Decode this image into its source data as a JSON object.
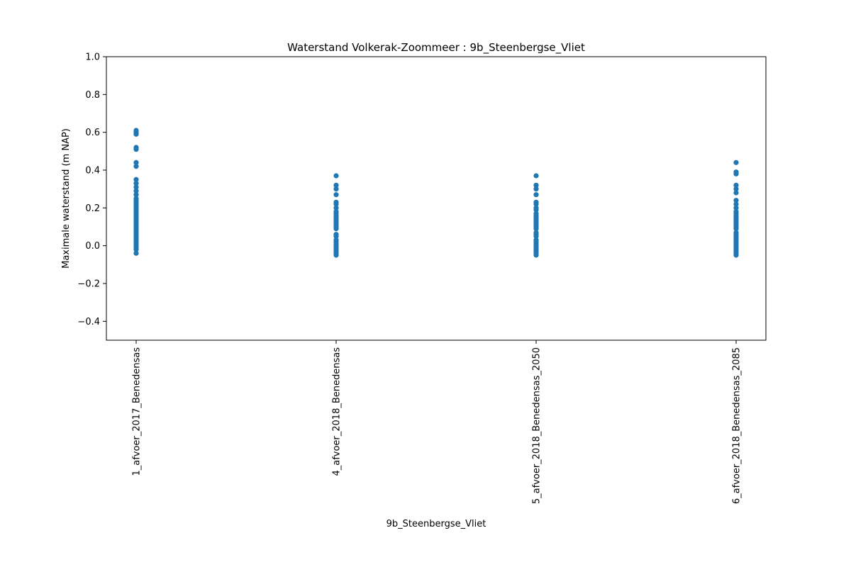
{
  "chart_data": {
    "type": "scatter",
    "title": "Waterstand Volkerak-Zoommeer : 9b_Steenbergse_Vliet",
    "xlabel": "9b_Steenbergse_Vliet",
    "ylabel": "Maximale waterstand (m NAP)",
    "ylim": [
      -0.5,
      1.0
    ],
    "yticks": [
      -0.4,
      -0.2,
      0.0,
      0.2,
      0.4,
      0.6,
      0.8,
      1.0
    ],
    "ytick_labels": [
      "−0.4",
      "−0.2",
      "0.0",
      "0.2",
      "0.4",
      "0.6",
      "0.8",
      "1.0"
    ],
    "categories": [
      "1_afvoer_2017_Benedensas",
      "4_afvoer_2018_Benedensas",
      "5_afvoer_2018_Benedensas_2050",
      "6_afvoer_2018_Benedensas_2085"
    ],
    "grid": false,
    "legend": "none",
    "color": "#1f77b4",
    "series": [
      {
        "values": [
          0.61,
          0.6,
          0.59,
          0.52,
          0.51,
          0.44,
          0.42,
          0.35,
          0.33,
          0.31,
          0.29,
          0.27,
          0.25,
          0.24,
          0.23,
          0.22,
          0.21,
          0.2,
          0.19,
          0.18,
          0.17,
          0.16,
          0.15,
          0.14,
          0.13,
          0.12,
          0.11,
          0.1,
          0.09,
          0.08,
          0.07,
          0.06,
          0.05,
          0.04,
          0.03,
          0.02,
          0.01,
          0.0,
          -0.01,
          -0.02,
          -0.04
        ]
      },
      {
        "values": [
          0.37,
          0.32,
          0.3,
          0.27,
          0.23,
          0.22,
          0.2,
          0.18,
          0.17,
          0.16,
          0.15,
          0.14,
          0.13,
          0.12,
          0.11,
          0.1,
          0.09,
          0.06,
          0.05,
          0.03,
          0.02,
          0.01,
          0.0,
          -0.01,
          -0.02,
          -0.03,
          -0.04,
          -0.05
        ]
      },
      {
        "values": [
          0.37,
          0.32,
          0.3,
          0.27,
          0.23,
          0.22,
          0.2,
          0.19,
          0.17,
          0.16,
          0.15,
          0.14,
          0.13,
          0.12,
          0.11,
          0.1,
          0.09,
          0.07,
          0.06,
          0.05,
          0.03,
          0.02,
          0.01,
          0.0,
          -0.01,
          -0.02,
          -0.03,
          -0.04,
          -0.05
        ]
      },
      {
        "values": [
          0.44,
          0.39,
          0.38,
          0.32,
          0.3,
          0.28,
          0.24,
          0.22,
          0.2,
          0.18,
          0.17,
          0.16,
          0.15,
          0.14,
          0.13,
          0.12,
          0.11,
          0.1,
          0.09,
          0.07,
          0.06,
          0.05,
          0.04,
          0.03,
          0.02,
          0.01,
          0.0,
          -0.01,
          -0.02,
          -0.03,
          -0.04,
          -0.05
        ]
      }
    ]
  }
}
